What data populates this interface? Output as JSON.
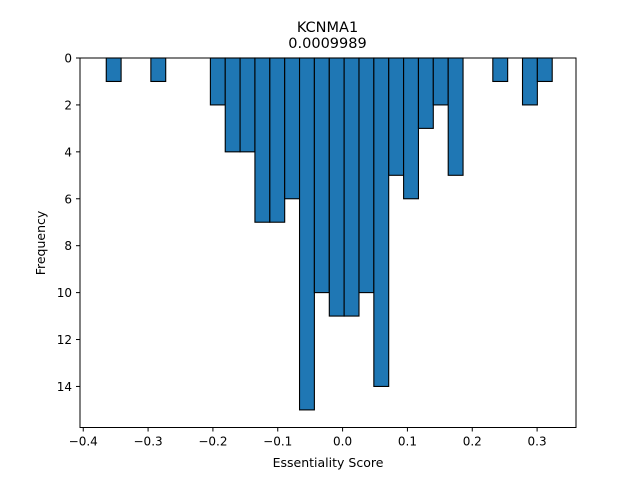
{
  "chart_data": {
    "type": "bar",
    "title": "KCNMA1",
    "subtitle": "0.0009989",
    "xlabel": "Essentiality Score",
    "ylabel": "Frequency",
    "y_axis_inverted": true,
    "xlim": [
      -0.405,
      0.36
    ],
    "ylim": [
      0,
      15.75
    ],
    "xticks": [
      -0.4,
      -0.3,
      -0.2,
      -0.1,
      0.0,
      0.1,
      0.2,
      0.3
    ],
    "xtick_labels": [
      "−0.4",
      "−0.3",
      "−0.2",
      "−0.1",
      "0.0",
      "0.1",
      "0.2",
      "0.3"
    ],
    "yticks": [
      0,
      2,
      4,
      6,
      8,
      10,
      12,
      14
    ],
    "ytick_labels": [
      "0",
      "2",
      "4",
      "6",
      "8",
      "10",
      "12",
      "14"
    ],
    "bin_width": 0.0229,
    "bins": [
      {
        "x_start": -0.3645,
        "count": 1
      },
      {
        "x_start": -0.2957,
        "count": 1
      },
      {
        "x_start": -0.2039,
        "count": 2
      },
      {
        "x_start": -0.181,
        "count": 4
      },
      {
        "x_start": -0.1581,
        "count": 4
      },
      {
        "x_start": -0.1352,
        "count": 7
      },
      {
        "x_start": -0.1122,
        "count": 7
      },
      {
        "x_start": -0.0893,
        "count": 6
      },
      {
        "x_start": -0.0664,
        "count": 15
      },
      {
        "x_start": -0.0435,
        "count": 10
      },
      {
        "x_start": -0.0205,
        "count": 11
      },
      {
        "x_start": 0.0024,
        "count": 11
      },
      {
        "x_start": 0.0253,
        "count": 10
      },
      {
        "x_start": 0.0482,
        "count": 14
      },
      {
        "x_start": 0.0712,
        "count": 5
      },
      {
        "x_start": 0.0941,
        "count": 6
      },
      {
        "x_start": 0.117,
        "count": 3
      },
      {
        "x_start": 0.1399,
        "count": 2
      },
      {
        "x_start": 0.1629,
        "count": 5
      },
      {
        "x_start": 0.2317,
        "count": 1
      },
      {
        "x_start": 0.2775,
        "count": 2
      },
      {
        "x_start": 0.3004,
        "count": 1
      }
    ],
    "colors": {
      "bar_fill": "#1f77b4",
      "bar_edge": "#000000"
    },
    "grid": false,
    "legend": "none"
  }
}
